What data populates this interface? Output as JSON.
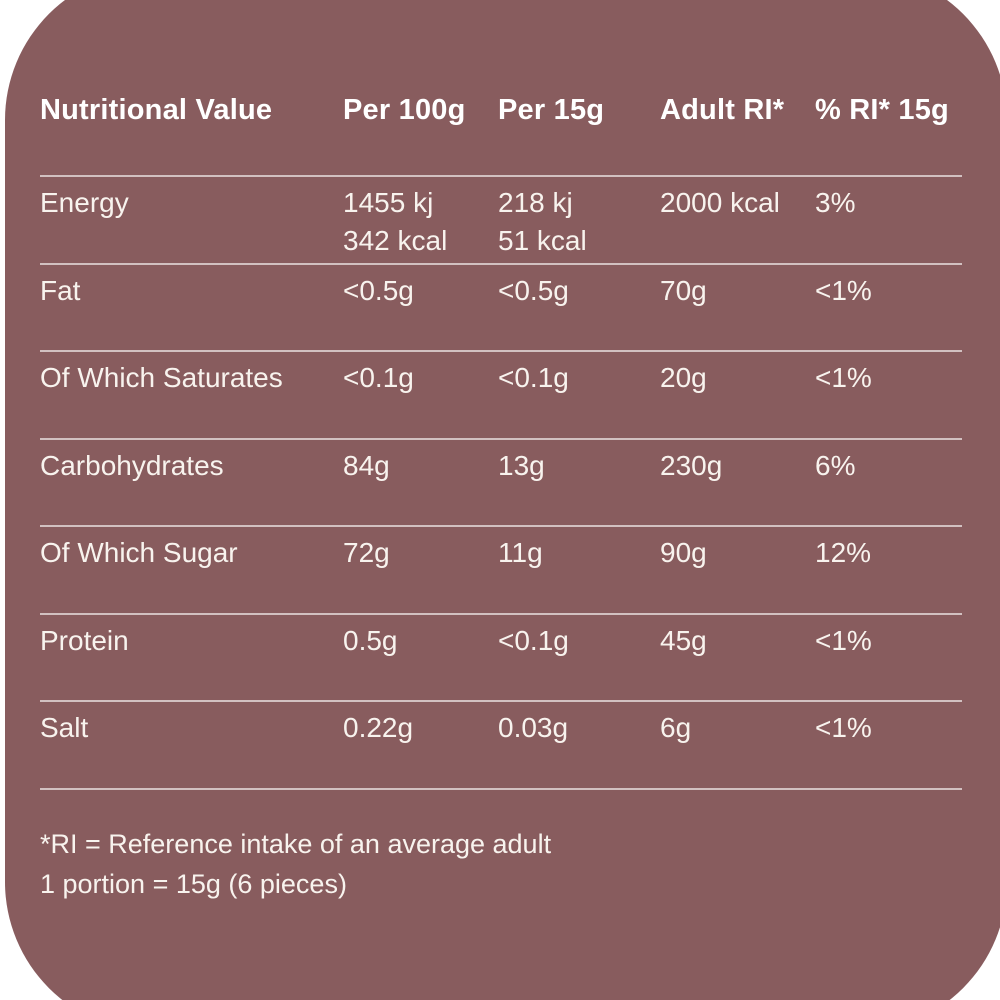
{
  "card": {
    "background_color": "#885c5e",
    "page_background": "#ffffff",
    "header_text_color": "#ffffff",
    "body_text_color": "#f8f3ee",
    "divider_color": "rgba(255,255,255,0.62)"
  },
  "table": {
    "columns": [
      "Nutritional Value",
      "Per 100g",
      "Per 15g",
      "Adult RI*",
      "% RI* 15g"
    ],
    "rows": [
      {
        "name": "Energy",
        "cells": [
          [
            "1455 kj",
            "342 kcal"
          ],
          [
            "218 kj",
            "51 kcal"
          ],
          [
            "2000 kcal"
          ],
          [
            "3%"
          ]
        ]
      },
      {
        "name": "Fat",
        "cells": [
          [
            "<0.5g"
          ],
          [
            "<0.5g"
          ],
          [
            "70g"
          ],
          [
            "<1%"
          ]
        ]
      },
      {
        "name": "Of Which Saturates",
        "cells": [
          [
            "<0.1g"
          ],
          [
            "<0.1g"
          ],
          [
            "20g"
          ],
          [
            "<1%"
          ]
        ]
      },
      {
        "name": "Carbohydrates",
        "cells": [
          [
            "84g"
          ],
          [
            "13g"
          ],
          [
            "230g"
          ],
          [
            "6%"
          ]
        ]
      },
      {
        "name": "Of Which Sugar",
        "cells": [
          [
            "72g"
          ],
          [
            "11g"
          ],
          [
            "90g"
          ],
          [
            "12%"
          ]
        ]
      },
      {
        "name": "Protein",
        "cells": [
          [
            "0.5g"
          ],
          [
            "<0.1g"
          ],
          [
            "45g"
          ],
          [
            "<1%"
          ]
        ]
      },
      {
        "name": "Salt",
        "cells": [
          [
            "0.22g"
          ],
          [
            "0.03g"
          ],
          [
            "6g"
          ],
          [
            "<1%"
          ]
        ]
      }
    ]
  },
  "footnotes": [
    "*RI = Reference intake of an average adult",
    "1 portion = 15g (6 pieces)"
  ]
}
